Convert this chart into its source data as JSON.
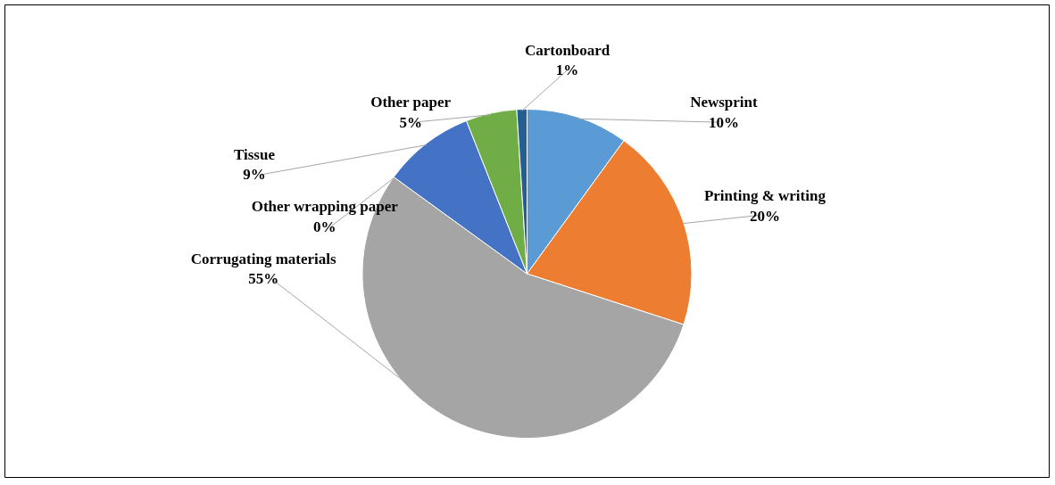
{
  "chart_data": {
    "type": "pie",
    "categories": [
      "Newsprint",
      "Printing & writing",
      "Corrugating materials",
      "Other wrapping paper",
      "Tissue",
      "Other paper",
      "Cartonboard"
    ],
    "values": [
      10,
      20,
      55,
      0,
      9,
      5,
      1
    ],
    "value_labels": [
      "10%",
      "20%",
      "55%",
      "0%",
      "9%",
      "5%",
      "1%"
    ],
    "colors": [
      "#5b9bd5",
      "#ed7d31",
      "#a5a5a5",
      "#ffc000",
      "#4472c4",
      "#70ad47",
      "#255e91"
    ],
    "legend": false
  }
}
